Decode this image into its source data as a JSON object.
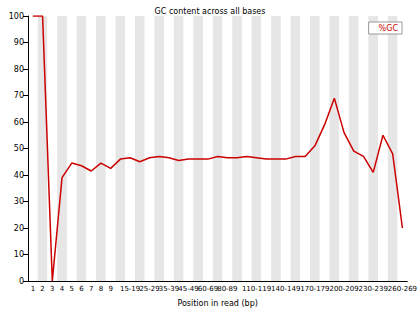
{
  "chart_data": {
    "type": "line",
    "title": "GC content across all bases",
    "x_label": "Position in read (bp)",
    "categories": [
      "1",
      "2",
      "3",
      "4",
      "5",
      "6",
      "7",
      "8",
      "9",
      null,
      "15-19",
      null,
      "25-29",
      null,
      "35-39",
      null,
      "45-49",
      null,
      "60-69",
      null,
      "80-89",
      null,
      null,
      "110-119",
      null,
      null,
      "140-149",
      null,
      null,
      "170-179",
      null,
      null,
      "200-209",
      null,
      null,
      "230-239",
      null,
      null,
      "260-269"
    ],
    "series": [
      {
        "name": "%GC",
        "color": "#cc0000",
        "values": [
          100,
          100,
          0,
          39,
          44.5,
          43.5,
          41.5,
          44.5,
          42.5,
          46,
          46.5,
          45,
          46.5,
          47,
          46.5,
          45.5,
          46,
          46,
          46,
          47,
          46.5,
          46.5,
          47,
          46.5,
          46,
          46,
          46,
          47,
          47,
          51,
          59,
          69,
          56,
          49,
          47,
          41,
          55,
          48,
          20
        ]
      }
    ],
    "ylim": [
      0,
      100
    ],
    "yticks": [
      0,
      10,
      20,
      30,
      40,
      50,
      60,
      70,
      80,
      90,
      100
    ],
    "legend": "upper right"
  }
}
